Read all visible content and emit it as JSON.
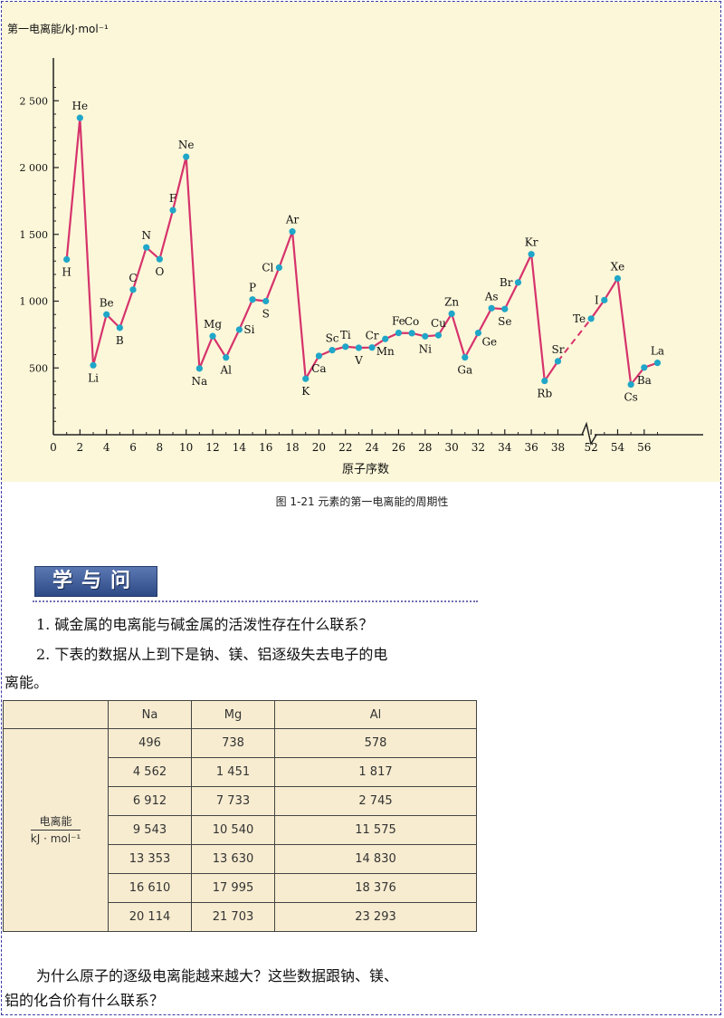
{
  "chart_data": {
    "type": "line",
    "ylabel": "第一电离能/kJ·mol⁻¹",
    "xlabel": "原子序数",
    "yticks": [
      500,
      1000,
      1500,
      2000,
      2500
    ],
    "ytick_labels": [
      "500",
      "1 000",
      "1 500",
      "2 000",
      "2 500"
    ],
    "xticks": [
      0,
      2,
      4,
      6,
      8,
      10,
      12,
      14,
      16,
      18,
      20,
      22,
      24,
      26,
      28,
      30,
      32,
      34,
      36,
      38,
      52,
      54,
      56
    ],
    "axis_break_between": [
      38,
      52
    ],
    "ylim": [
      0,
      2700
    ],
    "series": [
      {
        "segment": "solid",
        "points": [
          {
            "z": 1,
            "el": "H",
            "y": 1312,
            "pos": "below"
          },
          {
            "z": 2,
            "el": "He",
            "y": 2372,
            "pos": "above"
          },
          {
            "z": 3,
            "el": "Li",
            "y": 520,
            "pos": "below"
          },
          {
            "z": 4,
            "el": "Be",
            "y": 900,
            "pos": "above"
          },
          {
            "z": 5,
            "el": "B",
            "y": 801,
            "pos": "below"
          },
          {
            "z": 6,
            "el": "C",
            "y": 1086,
            "pos": "above"
          },
          {
            "z": 7,
            "el": "N",
            "y": 1402,
            "pos": "above"
          },
          {
            "z": 8,
            "el": "O",
            "y": 1314,
            "pos": "below"
          },
          {
            "z": 9,
            "el": "F",
            "y": 1681,
            "pos": "above"
          },
          {
            "z": 10,
            "el": "Ne",
            "y": 2081,
            "pos": "above"
          },
          {
            "z": 11,
            "el": "Na",
            "y": 496,
            "pos": "below"
          },
          {
            "z": 12,
            "el": "Mg",
            "y": 738,
            "pos": "above"
          },
          {
            "z": 13,
            "el": "Al",
            "y": 578,
            "pos": "below"
          },
          {
            "z": 14,
            "el": "Si",
            "y": 787,
            "pos": "right"
          },
          {
            "z": 15,
            "el": "P",
            "y": 1012,
            "pos": "above"
          },
          {
            "z": 16,
            "el": "S",
            "y": 1000,
            "pos": "below"
          },
          {
            "z": 17,
            "el": "Cl",
            "y": 1251,
            "pos": "left"
          },
          {
            "z": 18,
            "el": "Ar",
            "y": 1521,
            "pos": "above"
          },
          {
            "z": 19,
            "el": "K",
            "y": 419,
            "pos": "below"
          },
          {
            "z": 20,
            "el": "Ca",
            "y": 590,
            "pos": "below"
          },
          {
            "z": 21,
            "el": "Sc",
            "y": 633,
            "pos": "above"
          },
          {
            "z": 22,
            "el": "Ti",
            "y": 659,
            "pos": "above"
          },
          {
            "z": 23,
            "el": "V",
            "y": 651,
            "pos": "below"
          },
          {
            "z": 24,
            "el": "Cr",
            "y": 653,
            "pos": "above"
          },
          {
            "z": 25,
            "el": "Mn",
            "y": 717,
            "pos": "below"
          },
          {
            "z": 26,
            "el": "Fe",
            "y": 762,
            "pos": "above"
          },
          {
            "z": 27,
            "el": "Co",
            "y": 760,
            "pos": "above"
          },
          {
            "z": 28,
            "el": "Ni",
            "y": 737,
            "pos": "below"
          },
          {
            "z": 29,
            "el": "Cu",
            "y": 745,
            "pos": "above"
          },
          {
            "z": 30,
            "el": "Zn",
            "y": 906,
            "pos": "above"
          },
          {
            "z": 31,
            "el": "Ga",
            "y": 579,
            "pos": "below"
          },
          {
            "z": 32,
            "el": "Ge",
            "y": 762,
            "pos": "right-below"
          },
          {
            "z": 33,
            "el": "As",
            "y": 947,
            "pos": "above"
          },
          {
            "z": 34,
            "el": "Se",
            "y": 941,
            "pos": "below"
          },
          {
            "z": 35,
            "el": "Br",
            "y": 1140,
            "pos": "left"
          },
          {
            "z": 36,
            "el": "Kr",
            "y": 1351,
            "pos": "above"
          },
          {
            "z": 37,
            "el": "Rb",
            "y": 403,
            "pos": "below"
          },
          {
            "z": 38,
            "el": "Sr",
            "y": 550,
            "pos": "above"
          }
        ]
      },
      {
        "segment": "solid",
        "points": [
          {
            "z": 52,
            "el": "Te",
            "y": 869,
            "pos": "left"
          },
          {
            "z": 53,
            "el": "I",
            "y": 1008,
            "pos": "left"
          },
          {
            "z": 54,
            "el": "Xe",
            "y": 1170,
            "pos": "above"
          },
          {
            "z": 55,
            "el": "Cs",
            "y": 376,
            "pos": "below"
          },
          {
            "z": 56,
            "el": "Ba",
            "y": 503,
            "pos": "below"
          },
          {
            "z": 57,
            "el": "La",
            "y": 538,
            "pos": "above"
          }
        ]
      }
    ],
    "dashed_connector": [
      "Sr",
      "Te"
    ],
    "colors": {
      "line": "#d6336c",
      "marker": "#1fa6c8",
      "background": "#fcf7d9"
    }
  },
  "caption": "图 1-21   元素的第一电离能的周期性",
  "section_title": "学与问",
  "questions": {
    "q1": "1. 碱金属的电离能与碱金属的活泼性存在什么联系？",
    "q2_line1": "2. 下表的数据从上到下是钠、镁、铝逐级失去电子的电",
    "q2_line2": "离能。"
  },
  "table": {
    "headers": [
      "Na",
      "Mg",
      "Al"
    ],
    "row_label_top": "电离能",
    "row_label_bottom": "kJ · mol⁻¹",
    "rows": [
      [
        "496",
        "738",
        "578"
      ],
      [
        "4 562",
        "1 451",
        "1 817"
      ],
      [
        "6 912",
        "7 733",
        "2 745"
      ],
      [
        "9 543",
        "10 540",
        "11 575"
      ],
      [
        "13 353",
        "13 630",
        "14 830"
      ],
      [
        "16 610",
        "17 995",
        "18 376"
      ],
      [
        "20 114",
        "21 703",
        "23 293"
      ]
    ]
  },
  "closing": {
    "line1": "为什么原子的逐级电离能越来越大？这些数据跟钠、镁、",
    "line2": "铝的化合价有什么联系？"
  }
}
